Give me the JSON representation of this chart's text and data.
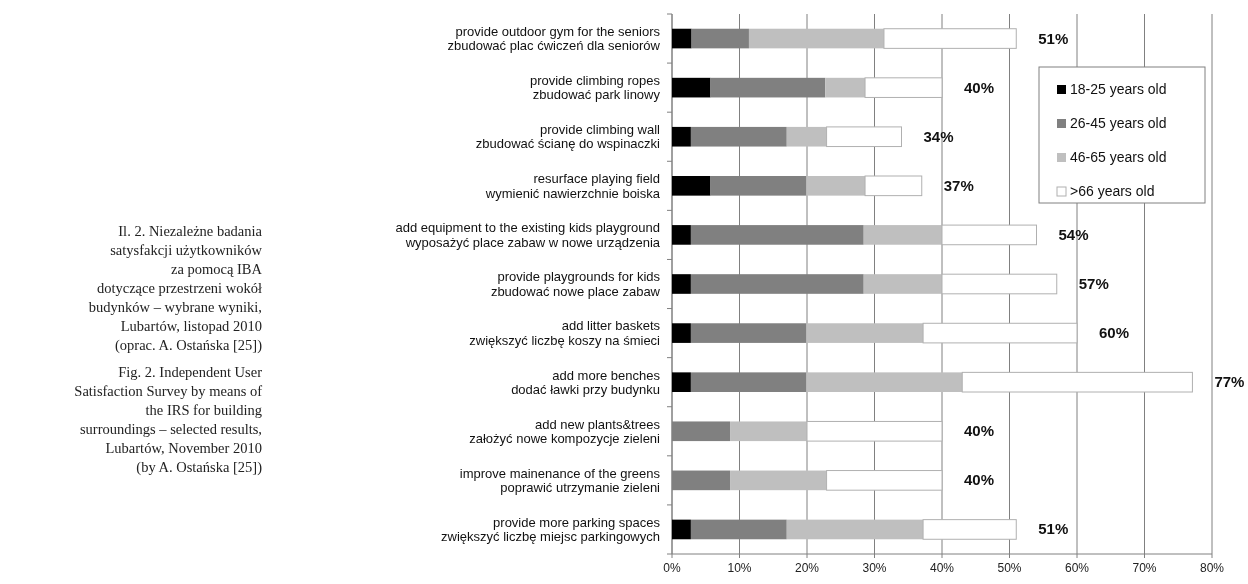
{
  "chart_data": {
    "type": "bar",
    "orientation": "horizontal",
    "stacked": true,
    "categories": [
      "provide outdoor gym for the seniors\nzbudować plac ćwiczeń dla seniorów",
      "provide climbing ropes\nzbudować park linowy",
      "provide climbing wall\nzbudować ścianę do wspinaczki",
      "resurface playing field\nwymienić nawierzchnie boiska",
      "add equipment to the existing kids playground\nwyposażyć place zabaw w nowe urządzenia",
      "provide playgrounds for kids\nzbudować nowe place zabaw",
      "add litter baskets\nzwiększyć liczbę koszy na śmieci",
      "add more benches\ndodać ławki przy budynku",
      "add new plants&trees\nzałożyć nowe kompozycje zieleni",
      "improve mainenance of the greens\npoprawić utrzymanie zieleni",
      "provide more parking spaces\nzwiększyć liczbę miejsc parkingowych"
    ],
    "series": [
      {
        "name": "18-25 years old",
        "color": "#000000",
        "values": [
          2.9,
          5.7,
          2.8,
          5.7,
          2.8,
          2.8,
          2.8,
          2.8,
          0,
          0,
          2.8
        ]
      },
      {
        "name": "26-45 years old",
        "color": "#808080",
        "values": [
          8.5,
          17,
          14.2,
          14.2,
          25.6,
          25.6,
          17.1,
          17.1,
          8.6,
          8.6,
          14.2
        ]
      },
      {
        "name": "46-65 years old",
        "color": "#bfbfbf",
        "values": [
          20,
          5.9,
          5.9,
          8.7,
          11.6,
          11.6,
          17.3,
          23.1,
          11.4,
          14.3,
          20.2
        ]
      },
      {
        "name": ">66 years old",
        "color": "#ffffff",
        "values": [
          19.6,
          11.4,
          11.1,
          8.4,
          14,
          17,
          22.8,
          34.1,
          20,
          17.1,
          13.8
        ]
      }
    ],
    "totals": [
      "51%",
      "40%",
      "34%",
      "37%",
      "54%",
      "57%",
      "60%",
      "77%",
      "40%",
      "40%",
      "51%"
    ],
    "xlim": [
      0,
      80
    ],
    "xticks": [
      {
        "value": 0,
        "label": "0%"
      },
      {
        "value": 10,
        "label": "10%"
      },
      {
        "value": 20,
        "label": "20%"
      },
      {
        "value": 30,
        "label": "30%"
      },
      {
        "value": 40,
        "label": "40%"
      },
      {
        "value": 50,
        "label": "50%"
      },
      {
        "value": 60,
        "label": "60%"
      },
      {
        "value": 70,
        "label": "70%"
      },
      {
        "value": 80,
        "label": "80%"
      }
    ],
    "grid": "x",
    "legend": "top right",
    "annotations": [
      "Il. 2. Niezależne badania\nsatysfakcji użytkowników\nza pomocą IBA\ndotyczące przestrzeni wokół\nbudynków – wybrane wyniki,\nLubartów, listopad 2010\n(oprac. A. Ostańska [25])",
      "Fig. 2. Independent User\nSatisfaction Survey by means of\nthe IRS for building\nsurroundings – selected results,\nLubartów, November 2010\n(by A. Ostańska [25])"
    ]
  }
}
